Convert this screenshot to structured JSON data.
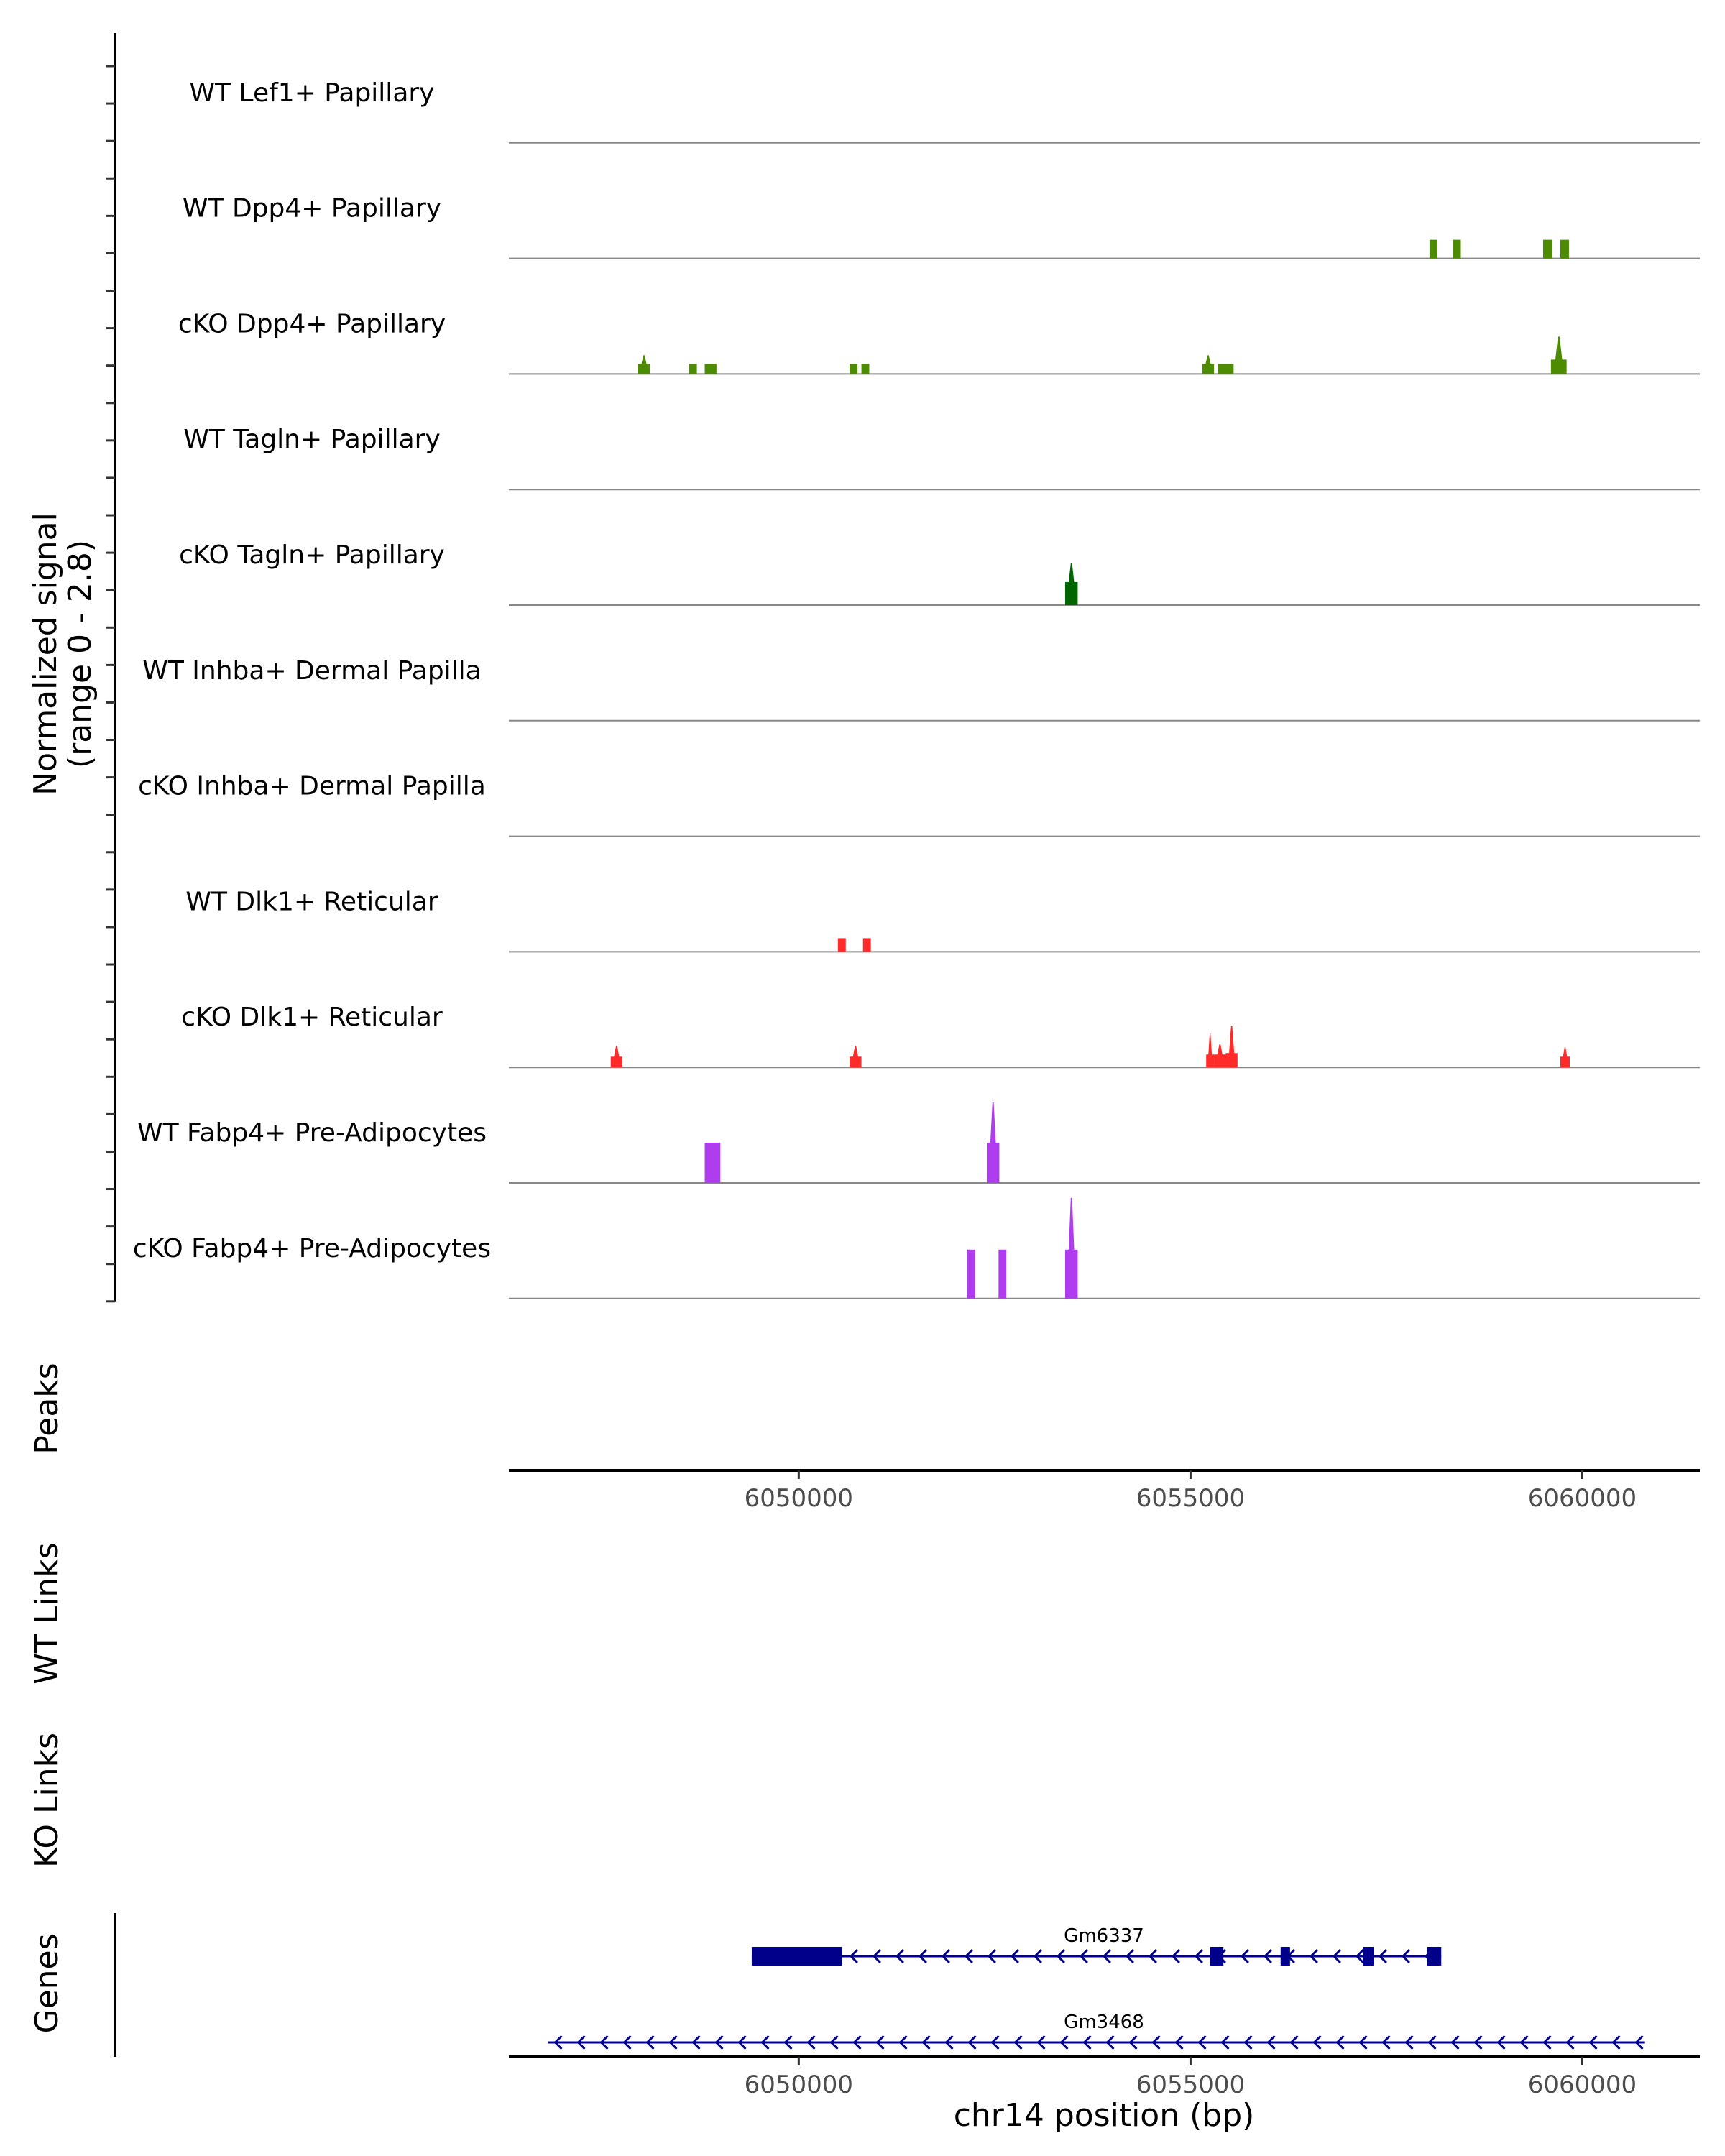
{
  "chart_data": {
    "type": "area",
    "title": "",
    "chromosome": "chr14",
    "xlim": [
      6046300,
      6061500
    ],
    "ylabel": "Normalized signal\n(range 0 - 2.8)",
    "ylabel_lines": [
      "Normalized signal",
      "(range 0 - 2.8)"
    ],
    "ylim": [
      0,
      2.8
    ],
    "xlabel": "chr14 position (bp)",
    "x_ticks": [
      6050000,
      6055000,
      6060000
    ],
    "x_tick_labels": [
      "6050000",
      "6055000",
      "6060000"
    ],
    "colors": {
      "papillary_green": "#4d8b00",
      "tagln_green": "#006400",
      "reticular_red": "#ff2a2a",
      "adipocyte_purple": "#b03cf0",
      "gene_navy": "#00008b",
      "baseline_grey": "#888888"
    },
    "coverage_tracks": [
      {
        "name": "WT Lef1+ Papillary",
        "color": "#4d8b00",
        "peaks": []
      },
      {
        "name": "WT Dpp4+ Papillary",
        "color": "#4d8b00",
        "peaks": [
          {
            "start": 6058050,
            "end": 6058150,
            "height": 1.3
          },
          {
            "start": 6058350,
            "end": 6058450,
            "height": 1.3
          },
          {
            "start": 6059500,
            "end": 6059620,
            "height": 1.3
          },
          {
            "start": 6059720,
            "end": 6059830,
            "height": 1.3
          }
        ]
      },
      {
        "name": "cKO Dpp4+ Papillary",
        "color": "#4d8b00",
        "peaks": [
          {
            "start": 6047950,
            "end": 6048100,
            "height": 0.7,
            "apex": 1.3
          },
          {
            "start": 6048600,
            "end": 6048700,
            "height": 0.7
          },
          {
            "start": 6048800,
            "end": 6048950,
            "height": 0.7
          },
          {
            "start": 6050650,
            "end": 6050750,
            "height": 0.7
          },
          {
            "start": 6050800,
            "end": 6050900,
            "height": 0.7
          },
          {
            "start": 6055150,
            "end": 6055300,
            "height": 0.7,
            "apex": 1.3
          },
          {
            "start": 6055350,
            "end": 6055550,
            "height": 0.7
          },
          {
            "start": 6059600,
            "end": 6059800,
            "height": 1.0,
            "apex": 2.6
          }
        ]
      },
      {
        "name": "WT Tagln+ Papillary",
        "color": "#006400",
        "peaks": []
      },
      {
        "name": "cKO Tagln+ Papillary",
        "color": "#006400",
        "peaks": [
          {
            "start": 6053400,
            "end": 6053560,
            "height": 1.6,
            "apex": 2.9
          }
        ]
      },
      {
        "name": "WT Inhba+ Dermal Papilla",
        "color": "#006400",
        "peaks": []
      },
      {
        "name": "cKO Inhba+ Dermal Papilla",
        "color": "#006400",
        "peaks": []
      },
      {
        "name": "WT Dlk1+ Reticular",
        "color": "#ff2a2a",
        "peaks": [
          {
            "start": 6050500,
            "end": 6050600,
            "height": 0.95
          },
          {
            "start": 6050820,
            "end": 6050920,
            "height": 0.95
          }
        ]
      },
      {
        "name": "cKO Dlk1+ Reticular",
        "color": "#ff2a2a",
        "peaks": [
          {
            "start": 6047600,
            "end": 6047750,
            "height": 0.75,
            "apex": 1.5
          },
          {
            "start": 6050650,
            "end": 6050800,
            "height": 0.75,
            "apex": 1.5
          },
          {
            "start": 6055200,
            "end": 6055300,
            "height": 0.9,
            "apex": 2.4
          },
          {
            "start": 6055300,
            "end": 6055450,
            "height": 0.9,
            "apex": 1.6
          },
          {
            "start": 6055450,
            "end": 6055600,
            "height": 1.0,
            "apex": 2.9
          },
          {
            "start": 6059720,
            "end": 6059840,
            "height": 0.75,
            "apex": 1.4
          }
        ]
      },
      {
        "name": "WT Fabp4+ Pre-Adipocytes",
        "color": "#b03cf0",
        "peaks": [
          {
            "start": 6048800,
            "end": 6049000,
            "height": 2.8
          },
          {
            "start": 6052400,
            "end": 6052560,
            "height": 2.8,
            "apex": 5.6
          }
        ]
      },
      {
        "name": "cKO Fabp4+ Pre-Adipocytes",
        "color": "#b03cf0",
        "peaks": [
          {
            "start": 6052150,
            "end": 6052250,
            "height": 3.4
          },
          {
            "start": 6052550,
            "end": 6052650,
            "height": 3.4
          },
          {
            "start": 6053400,
            "end": 6053560,
            "height": 3.4,
            "apex": 7.0
          }
        ]
      }
    ],
    "other_tracks": {
      "peaks_label": "Peaks",
      "wt_links_label": "WT Links",
      "ko_links_label": "KO Links",
      "genes_label": "Genes"
    },
    "genes": [
      {
        "name": "Gm6337",
        "start": 6049400,
        "end": 6058200,
        "strand": "-",
        "exons": [
          [
            6049400,
            6050550
          ],
          [
            6055250,
            6055420
          ],
          [
            6056150,
            6056270
          ],
          [
            6057200,
            6057340
          ],
          [
            6058020,
            6058200
          ]
        ]
      },
      {
        "name": "Gm3468",
        "start": 6046800,
        "end": 6060800,
        "strand": "-",
        "exons": []
      }
    ]
  }
}
